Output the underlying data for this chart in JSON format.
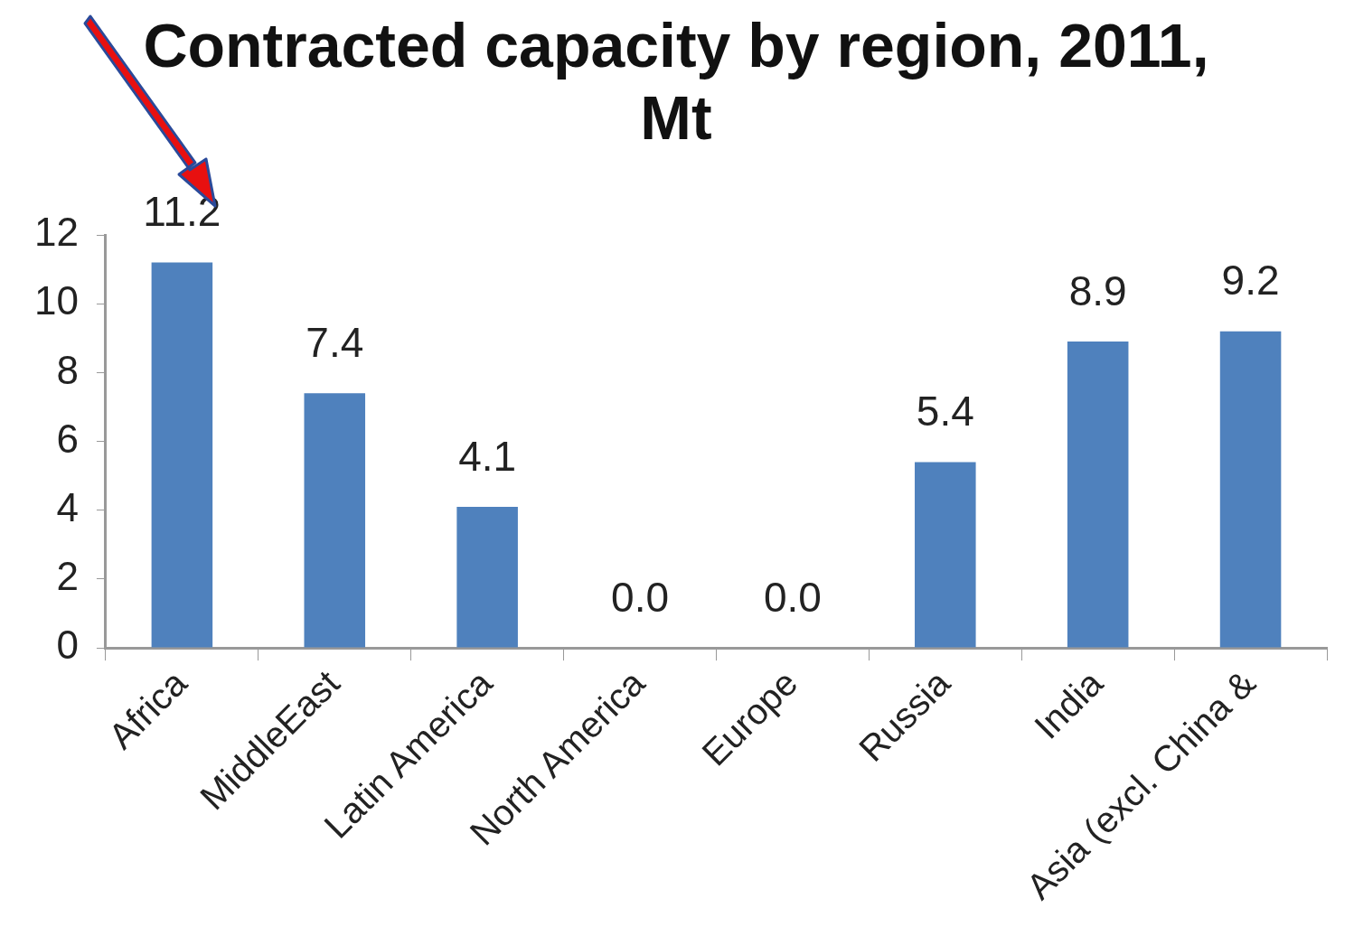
{
  "chart_data": {
    "type": "bar",
    "title": "Contracted capacity by region, 2011, Mt",
    "categories": [
      "Africa",
      "MiddleEast",
      "Latin America",
      "North America",
      "Europe",
      "Russia",
      "India",
      "Asia (excl. China &"
    ],
    "values": [
      11.2,
      7.4,
      4.1,
      0,
      0,
      5.4,
      8.9,
      9.2
    ],
    "value_labels": [
      "11.2",
      "7.4",
      "4.1",
      "0.0",
      "0.0",
      "5.4",
      "8.9",
      "9.2"
    ],
    "color": "#4f81bd",
    "ylim": [
      0,
      12
    ],
    "yticks": [
      0,
      2,
      4,
      6,
      8,
      10,
      12
    ],
    "grid": false,
    "legend": false
  }
}
